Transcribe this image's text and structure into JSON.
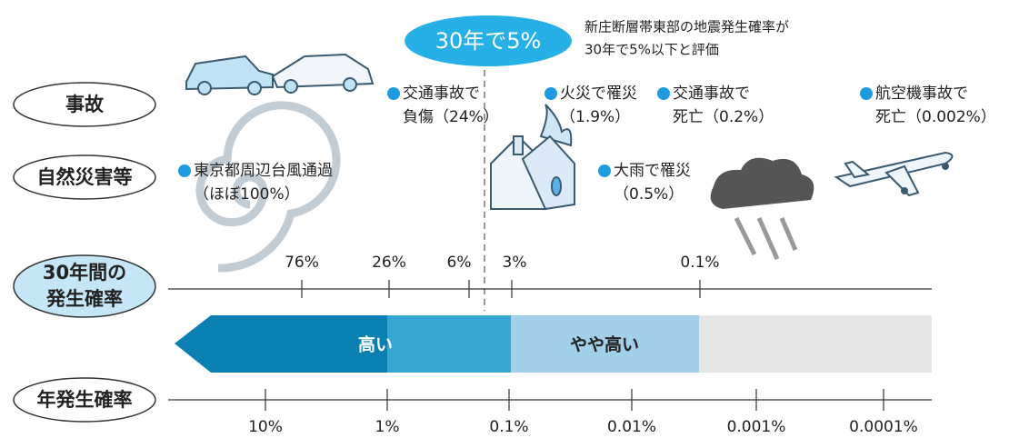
{
  "highlight": "30年で5%",
  "note": [
    "新庄断層帯東部の地震発生確率が",
    "30年で5%以下と評価"
  ],
  "rows": [
    {
      "lines": [
        "事故"
      ]
    },
    {
      "lines": [
        "自然災害等"
      ]
    },
    {
      "lines": [
        "30年間の",
        "発生確率"
      ]
    },
    {
      "lines": [
        "年発生確率"
      ]
    }
  ],
  "events": [
    {
      "lines": [
        "交通事故で",
        "負傷（24%）"
      ]
    },
    {
      "lines": [
        "火災で罹災",
        "（1.9%）"
      ]
    },
    {
      "lines": [
        "交通事故で",
        "死亡（0.2%）"
      ]
    },
    {
      "lines": [
        "航空機事故で",
        "死亡（0.002%）"
      ]
    },
    {
      "lines": [
        "東京都周辺台風通過",
        "（ほぼ100%）"
      ]
    },
    {
      "lines": [
        "大雨で罹災",
        "（0.5%）"
      ]
    }
  ],
  "scale_30yr": [
    "76%",
    "26%",
    "6%",
    "3%",
    "0.1%"
  ],
  "bands": [
    "高い",
    "やや高い"
  ],
  "scale_annual": [
    "10%",
    "1%",
    "0.1%",
    "0.01%",
    "0.001%",
    "0.0001%"
  ]
}
